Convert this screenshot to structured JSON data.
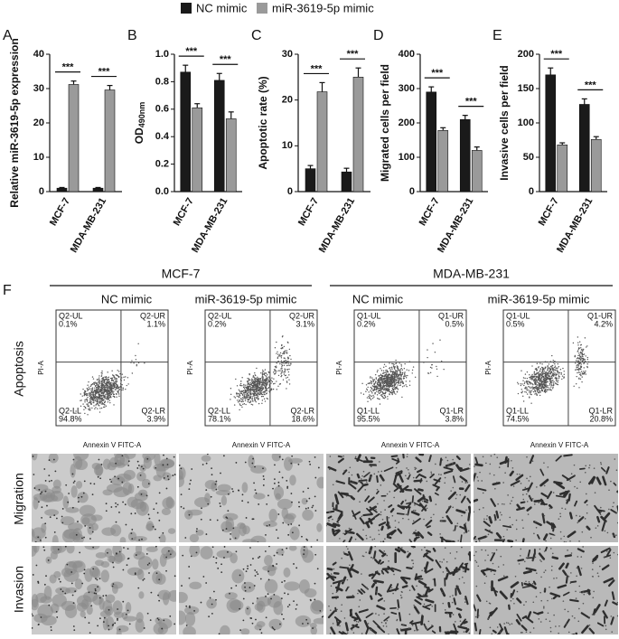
{
  "chart_data": [
    {
      "type": "bar",
      "panel": "A",
      "ylabel": "Relative miR-3619-5p expression",
      "categories": [
        "MCF-7",
        "MDA-MB-231"
      ],
      "series": [
        {
          "name": "NC mimic",
          "color": "#1a1a1a",
          "values": [
            1,
            1
          ],
          "errors": [
            0.2,
            0.2
          ]
        },
        {
          "name": "miR-3619-5p mimic",
          "color": "#9a9a9a",
          "values": [
            31.2,
            29.6
          ],
          "errors": [
            1,
            1.3
          ]
        }
      ],
      "ylim": [
        0,
        40
      ],
      "yticks": [
        0,
        10,
        20,
        30,
        40
      ],
      "annotations": [
        "***",
        "***"
      ]
    },
    {
      "type": "bar",
      "panel": "B",
      "ylabel": "OD",
      "ylabel_subscript": "490nm",
      "categories": [
        "MCF-7",
        "MDA-MB-231"
      ],
      "series": [
        {
          "name": "NC mimic",
          "color": "#1a1a1a",
          "values": [
            0.87,
            0.81
          ],
          "errors": [
            0.05,
            0.05
          ]
        },
        {
          "name": "miR-3619-5p mimic",
          "color": "#9a9a9a",
          "values": [
            0.61,
            0.53
          ],
          "errors": [
            0.03,
            0.05
          ]
        }
      ],
      "ylim": [
        0,
        1
      ],
      "yticks": [
        {
          "value": 0,
          "label": "0.0"
        },
        0.2,
        0.4,
        0.6,
        0.8,
        {
          "value": 1,
          "label": "1.0"
        }
      ],
      "annotations": [
        "***",
        "***"
      ]
    },
    {
      "type": "bar",
      "panel": "C",
      "ylabel": "Apoptotic rate (%)",
      "categories": [
        "MCF-7",
        "MDA-MB-231"
      ],
      "series": [
        {
          "name": "NC mimic",
          "color": "#1a1a1a",
          "values": [
            5,
            4.3
          ],
          "errors": [
            0.7,
            0.8
          ]
        },
        {
          "name": "miR-3619-5p mimic",
          "color": "#9a9a9a",
          "values": [
            21.8,
            25
          ],
          "errors": [
            2,
            2
          ]
        }
      ],
      "ylim": [
        0,
        30
      ],
      "yticks": [
        0,
        10,
        20,
        30
      ],
      "annotations": [
        "***",
        "***"
      ]
    },
    {
      "type": "bar",
      "panel": "D",
      "ylabel": "Migrated cells per field",
      "categories": [
        "MCF-7",
        "MDA-MB-231"
      ],
      "series": [
        {
          "name": "NC mimic",
          "color": "#1a1a1a",
          "values": [
            290,
            210
          ],
          "errors": [
            15,
            12
          ]
        },
        {
          "name": "miR-3619-5p mimic",
          "color": "#9a9a9a",
          "values": [
            178,
            120
          ],
          "errors": [
            8,
            10
          ]
        }
      ],
      "ylim": [
        0,
        400
      ],
      "yticks": [
        0,
        100,
        200,
        300,
        400
      ],
      "annotations": [
        "***",
        "***"
      ]
    },
    {
      "type": "bar",
      "panel": "E",
      "ylabel": "Invasive cells per field",
      "categories": [
        "MCF-7",
        "MDA-MB-231"
      ],
      "series": [
        {
          "name": "NC mimic",
          "color": "#1a1a1a",
          "values": [
            170,
            127
          ],
          "errors": [
            10,
            8
          ]
        },
        {
          "name": "miR-3619-5p mimic",
          "color": "#9a9a9a",
          "values": [
            68,
            76
          ],
          "errors": [
            3,
            4
          ]
        }
      ],
      "ylim": [
        0,
        200
      ],
      "yticks": [
        0,
        50,
        100,
        150,
        200
      ],
      "annotations": [
        "***",
        "***"
      ]
    }
  ],
  "panel_f": {
    "label": "F",
    "groups": [
      {
        "title": "MCF-7",
        "columns": [
          "NC mimic",
          "miR-3619-5p mimic"
        ]
      },
      {
        "title": "MDA-MB-231",
        "columns": [
          "NC mimic",
          "miR-3619-5p mimic"
        ]
      }
    ],
    "rows": [
      "Apoptosis",
      "Migration",
      "Invasion"
    ],
    "flow_xlabel": "Annexin V FITC-A",
    "flow_ylabel": "PI-A",
    "flow_plots": [
      {
        "quadrants": [
          "Q2-UL",
          "Q2-UR",
          "Q2-LL",
          "Q2-LR"
        ],
        "percents": [
          "0.1%",
          "1.1%",
          "94.8%",
          "3.9%"
        ]
      },
      {
        "quadrants": [
          "Q2-UL",
          "Q2-UR",
          "Q2-LL",
          "Q2-LR"
        ],
        "percents": [
          "0.2%",
          "3.1%",
          "78.1%",
          "18.6%"
        ]
      },
      {
        "quadrants": [
          "Q1-UL",
          "Q1-UR",
          "Q1-LL",
          "Q1-LR"
        ],
        "percents": [
          "0.2%",
          "0.5%",
          "95.5%",
          "3.8%"
        ]
      },
      {
        "quadrants": [
          "Q1-UL",
          "Q1-UR",
          "Q1-LL",
          "Q1-LR"
        ],
        "percents": [
          "0.5%",
          "4.2%",
          "74.5%",
          "20.8%"
        ]
      }
    ]
  }
}
